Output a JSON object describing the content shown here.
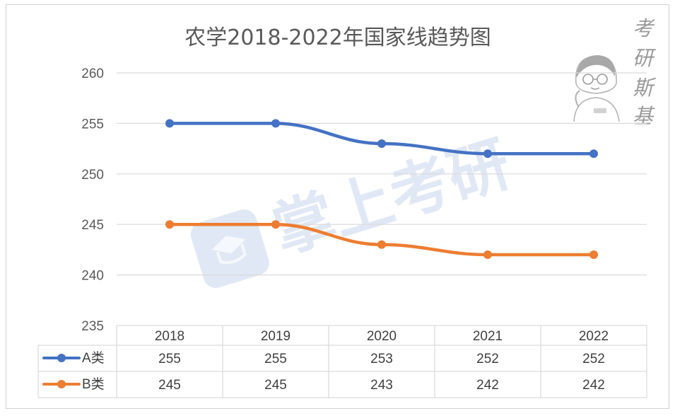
{
  "chart_data": {
    "type": "line",
    "title": "农学2018-2022年国家线趋势图",
    "categories": [
      "2018",
      "2019",
      "2020",
      "2021",
      "2022"
    ],
    "ylim": [
      235,
      260
    ],
    "yticks": [
      "235",
      "240",
      "245",
      "250",
      "255",
      "260"
    ],
    "grid": true,
    "legend": "data-table",
    "series": [
      {
        "name": "A类",
        "color": "#4472C4",
        "values": [
          255,
          255,
          253,
          252,
          252
        ]
      },
      {
        "name": "B类",
        "color": "#ED7D31",
        "values": [
          245,
          245,
          243,
          242,
          242
        ]
      }
    ],
    "table": {
      "rows": [
        {
          "label": "A类",
          "cells": [
            "255",
            "255",
            "253",
            "252",
            "252"
          ]
        },
        {
          "label": "B类",
          "cells": [
            "245",
            "245",
            "243",
            "242",
            "242"
          ]
        }
      ]
    }
  },
  "brand": {
    "chars": [
      "考",
      "研",
      "斯",
      "基"
    ]
  },
  "watermark": {
    "text": "掌上考研"
  }
}
